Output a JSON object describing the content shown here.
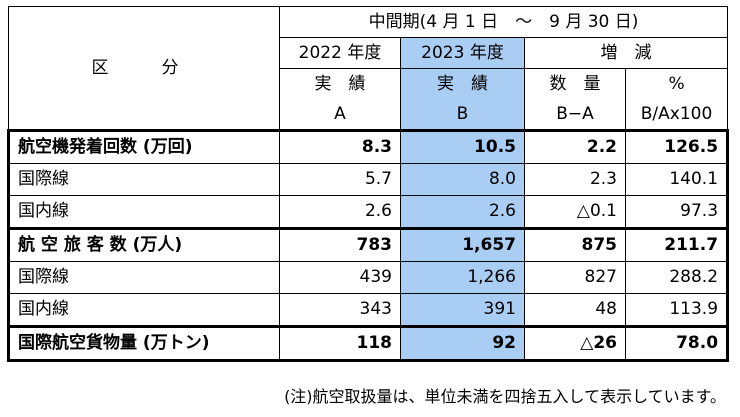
{
  "header": {
    "kubun": "区　分",
    "period": "中間期(4 月 1 日　～　9 月 30 日)",
    "fy2022": "2022 年度",
    "fy2023": "2023 年度",
    "zougen": "増　減",
    "jisseki_a": "実　績",
    "jisseki_b": "実　績",
    "suryo": "数　量",
    "pct": "%",
    "a": "A",
    "b": "B",
    "b_minus_a": "B−A",
    "ratio": "B/Ax100"
  },
  "rows": [
    {
      "label": "航空機発着回数 (万回)",
      "a": "8.3",
      "b": "10.5",
      "diff": "2.2",
      "pct": "126.5"
    },
    {
      "label": "国際線",
      "a": "5.7",
      "b": "8.0",
      "diff": "2.3",
      "pct": "140.1"
    },
    {
      "label": "国内線",
      "a": "2.6",
      "b": "2.6",
      "diff": "△0.1",
      "pct": "97.3"
    },
    {
      "label": "航 空 旅 客 数 (万人)",
      "a": "783",
      "b": "1,657",
      "diff": "875",
      "pct": "211.7"
    },
    {
      "label": "国際線",
      "a": "439",
      "b": "1,266",
      "diff": "827",
      "pct": "288.2"
    },
    {
      "label": "国内線",
      "a": "343",
      "b": "391",
      "diff": "48",
      "pct": "113.9"
    },
    {
      "label": "国際航空貨物量 (万トン)",
      "a": "118",
      "b": "92",
      "diff": "△26",
      "pct": "78.0"
    }
  ],
  "note": "(注)航空取扱量は、単位未満を四捨五入して表示しています。",
  "colors": {
    "highlight": "#a9cdf3"
  }
}
